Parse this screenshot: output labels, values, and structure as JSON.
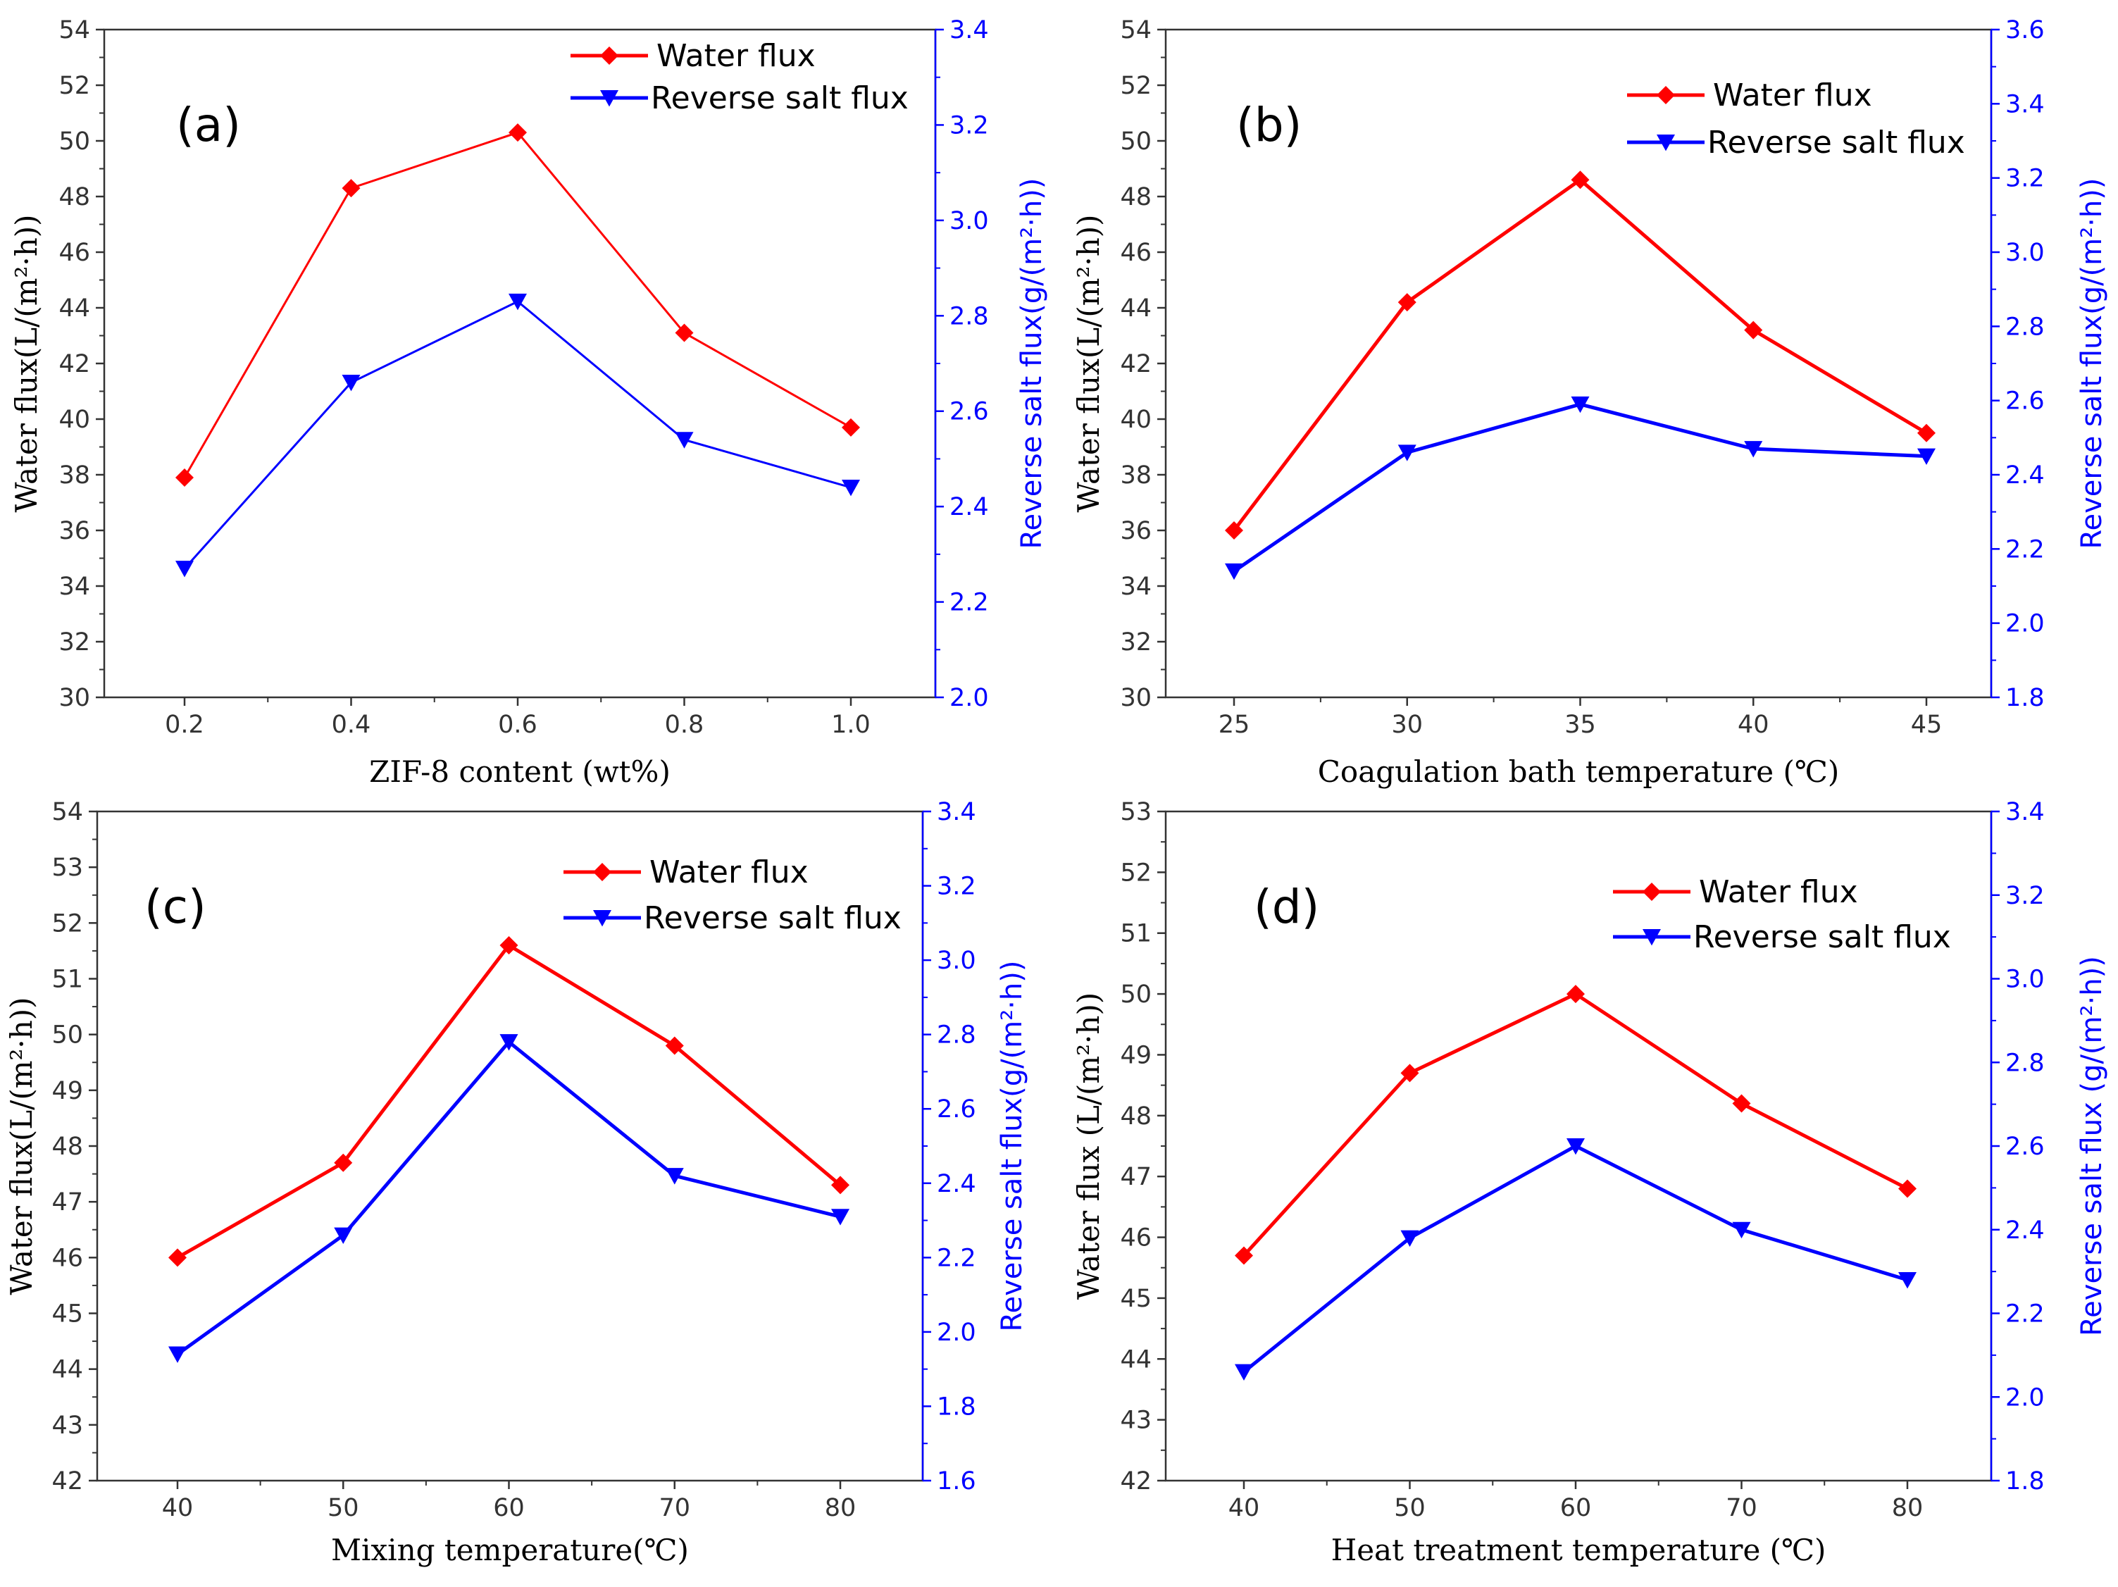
{
  "colors": {
    "water": "#ff0000",
    "salt": "#0000ff",
    "axis": "#333333",
    "right_axis": "#0000ff"
  },
  "chart_data": [
    {
      "type": "line",
      "panel_label": "(a)",
      "xlabel": "ZIF-8 content (wt%)",
      "ylabel": "Water flux(L/(m²·h))",
      "y2label": "Reverse salt flux(g/(m²·h))",
      "categories": [
        "0.2",
        "0.4",
        "0.6",
        "0.8",
        "1.0"
      ],
      "ylim": [
        30,
        54
      ],
      "yticks": [
        "30",
        "32",
        "34",
        "36",
        "38",
        "40",
        "42",
        "44",
        "46",
        "48",
        "50",
        "52",
        "54"
      ],
      "y2lim": [
        2.0,
        3.4
      ],
      "y2ticks": [
        "2.0",
        "2.2",
        "2.4",
        "2.6",
        "2.8",
        "3.0",
        "3.2",
        "3.4"
      ],
      "legend": [
        "Water flux",
        "Reverse salt flux"
      ],
      "legend_position": "top-right",
      "series": [
        {
          "name": "Water flux",
          "axis": "left",
          "marker": "diamond",
          "values": [
            37.9,
            48.3,
            50.3,
            43.1,
            39.7
          ]
        },
        {
          "name": "Reverse salt flux",
          "axis": "right",
          "marker": "triangle-down",
          "values": [
            2.27,
            2.66,
            2.83,
            2.54,
            2.44
          ]
        }
      ]
    },
    {
      "type": "line",
      "panel_label": "(b)",
      "xlabel": "Coagulation bath temperature (℃)",
      "ylabel": "Water flux(L/(m²·h))",
      "y2label": "Reverse salt flux(g/(m²·h))",
      "categories": [
        "25",
        "30",
        "35",
        "40",
        "45"
      ],
      "ylim": [
        30,
        54
      ],
      "yticks": [
        "30",
        "32",
        "34",
        "36",
        "38",
        "40",
        "42",
        "44",
        "46",
        "48",
        "50",
        "52",
        "54"
      ],
      "y2lim": [
        1.8,
        3.6
      ],
      "y2ticks": [
        "1.8",
        "2.0",
        "2.2",
        "2.4",
        "2.6",
        "2.8",
        "3.0",
        "3.2",
        "3.4",
        "3.6"
      ],
      "legend": [
        "Water flux",
        "Reverse salt flux"
      ],
      "legend_position": "top-right",
      "series": [
        {
          "name": "Water flux",
          "axis": "left",
          "marker": "diamond",
          "values": [
            36.0,
            44.2,
            48.6,
            43.2,
            39.5
          ]
        },
        {
          "name": "Reverse salt flux",
          "axis": "right",
          "marker": "triangle-down",
          "values": [
            2.14,
            2.46,
            2.59,
            2.47,
            2.45
          ]
        }
      ]
    },
    {
      "type": "line",
      "panel_label": "(c)",
      "xlabel": "Mixing temperature(℃)",
      "ylabel": "Water flux(L/(m²·h))",
      "y2label": "Reverse salt flux(g/(m²·h))",
      "categories": [
        "40",
        "50",
        "60",
        "70",
        "80"
      ],
      "ylim": [
        42,
        54
      ],
      "yticks": [
        "42",
        "43",
        "44",
        "45",
        "46",
        "47",
        "48",
        "49",
        "50",
        "51",
        "52",
        "53",
        "54"
      ],
      "y2lim": [
        1.6,
        3.4
      ],
      "y2ticks": [
        "1.6",
        "1.8",
        "2.0",
        "2.2",
        "2.4",
        "2.6",
        "2.8",
        "3.0",
        "3.2",
        "3.4"
      ],
      "legend": [
        "Water flux",
        "Reverse salt flux"
      ],
      "legend_position": "top-right",
      "series": [
        {
          "name": "Water flux",
          "axis": "left",
          "marker": "diamond",
          "values": [
            46.0,
            47.7,
            51.6,
            49.8,
            47.3
          ]
        },
        {
          "name": "Reverse salt flux",
          "axis": "right",
          "marker": "triangle-down",
          "values": [
            1.94,
            2.26,
            2.78,
            2.42,
            2.31
          ]
        }
      ]
    },
    {
      "type": "line",
      "panel_label": "(d)",
      "xlabel": "Heat treatment temperature (℃)",
      "ylabel": "Water flux (L/(m²·h))",
      "y2label": "Reverse salt flux (g/(m²·h))",
      "categories": [
        "40",
        "50",
        "60",
        "70",
        "80"
      ],
      "ylim": [
        42,
        53
      ],
      "yticks": [
        "42",
        "43",
        "44",
        "45",
        "46",
        "47",
        "48",
        "49",
        "50",
        "51",
        "52",
        "53"
      ],
      "y2lim": [
        1.8,
        3.4
      ],
      "y2ticks": [
        "1.8",
        "2.0",
        "2.2",
        "2.4",
        "2.6",
        "2.8",
        "3.0",
        "3.2",
        "3.4"
      ],
      "legend": [
        "Water flux",
        "Reverse salt flux"
      ],
      "legend_position": "top-right",
      "series": [
        {
          "name": "Water flux",
          "axis": "left",
          "marker": "diamond",
          "values": [
            45.7,
            48.7,
            50.0,
            48.2,
            46.8
          ]
        },
        {
          "name": "Reverse salt flux",
          "axis": "right",
          "marker": "triangle-down",
          "values": [
            2.06,
            2.38,
            2.6,
            2.4,
            2.28
          ]
        }
      ]
    }
  ]
}
